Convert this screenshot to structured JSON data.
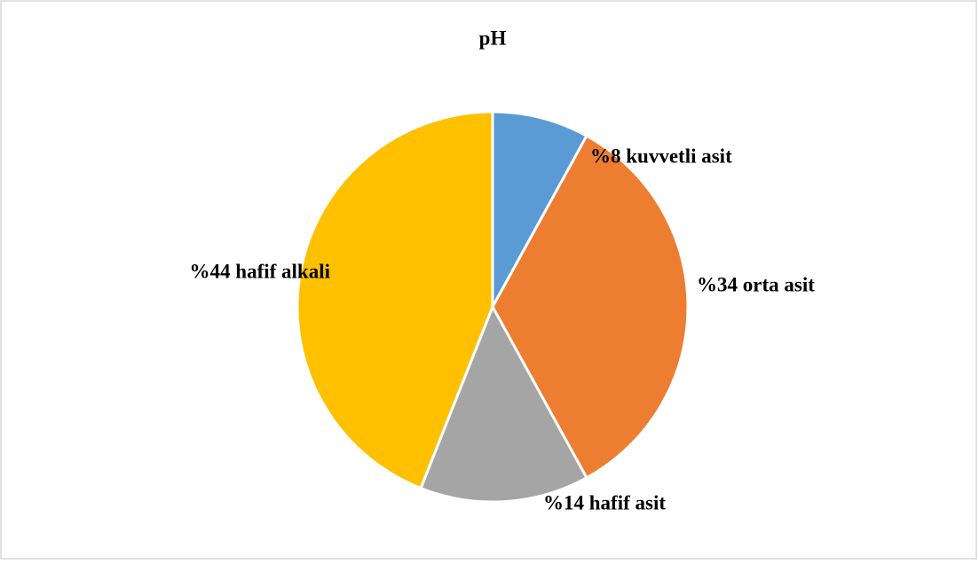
{
  "chart_data": {
    "type": "pie",
    "title": "pH",
    "values": [
      8,
      34,
      14,
      44
    ],
    "value_labels": [
      "%8 kuvvetli asit",
      "%34 orta asit",
      "%14 hafif asit",
      "%44 hafif alkali"
    ],
    "colors": [
      "#5b9bd5",
      "#ed7d31",
      "#a5a5a5",
      "#ffc000"
    ]
  }
}
